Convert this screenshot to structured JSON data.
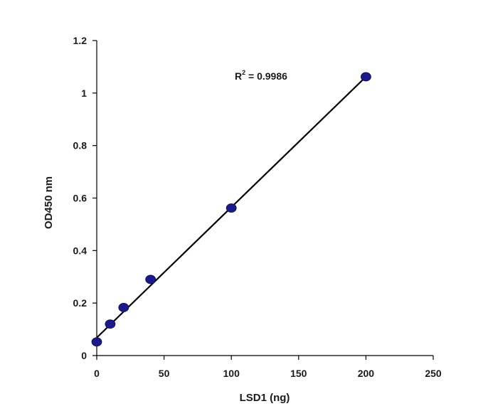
{
  "chart_data": {
    "type": "scatter",
    "title": "",
    "xlabel": "LSD1 (ng)",
    "ylabel": "OD450 nm",
    "xlim": [
      0,
      250
    ],
    "ylim": [
      0,
      1.2
    ],
    "xticks": [
      "0",
      "50",
      "100",
      "150",
      "200",
      "250"
    ],
    "yticks": [
      "0",
      "0.2",
      "0.4",
      "0.6",
      "0.8",
      "1",
      "1.2"
    ],
    "grid": false,
    "legend": "none",
    "series": [
      {
        "x": [
          0,
          10,
          20,
          40,
          100,
          200
        ],
        "y": [
          0.052,
          0.12,
          0.183,
          0.29,
          0.562,
          1.062
        ],
        "marker_color": "#1a1a8c"
      }
    ],
    "trendline": {
      "type": "linear",
      "x": [
        0,
        200
      ],
      "y": [
        0.068,
        1.062
      ],
      "color": "#000000"
    },
    "annotation": {
      "r_label": "R",
      "r_sup": "2",
      "r_value": " = 0.9986"
    }
  }
}
